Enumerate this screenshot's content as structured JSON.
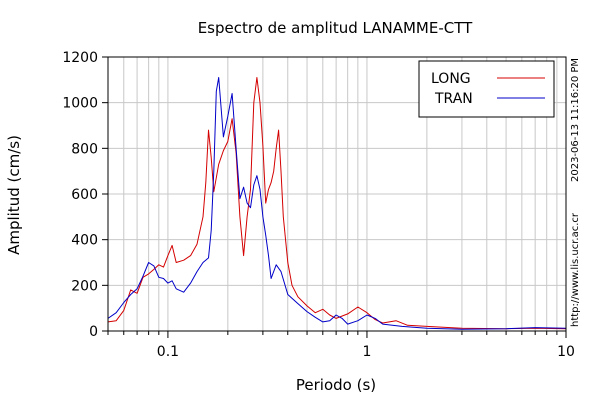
{
  "chart_data": {
    "type": "line",
    "title": "Espectro de amplitud LANAMME-CTT",
    "xlabel": "Periodo (s)",
    "ylabel": "Amplitud (cm/s)",
    "x_scale": "log",
    "xlim": [
      0.05,
      10
    ],
    "ylim": [
      0,
      1200
    ],
    "grid": true,
    "legend_position": "top-right",
    "x_ticks": [
      {
        "value": 0.1,
        "label": "0.1"
      },
      {
        "value": 1,
        "label": "1"
      },
      {
        "value": 10,
        "label": "10"
      }
    ],
    "y_ticks": [
      {
        "value": 0,
        "label": "0"
      },
      {
        "value": 200,
        "label": "200"
      },
      {
        "value": 400,
        "label": "400"
      },
      {
        "value": 600,
        "label": "600"
      },
      {
        "value": 800,
        "label": "800"
      },
      {
        "value": 1000,
        "label": "1000"
      },
      {
        "value": 1200,
        "label": "1200"
      }
    ],
    "series": [
      {
        "name": "LONG",
        "color": "#d40000",
        "points": [
          [
            0.05,
            40
          ],
          [
            0.055,
            45
          ],
          [
            0.06,
            90
          ],
          [
            0.065,
            180
          ],
          [
            0.07,
            165
          ],
          [
            0.075,
            235
          ],
          [
            0.08,
            250
          ],
          [
            0.085,
            270
          ],
          [
            0.09,
            290
          ],
          [
            0.095,
            280
          ],
          [
            0.1,
            330
          ],
          [
            0.105,
            375
          ],
          [
            0.11,
            300
          ],
          [
            0.12,
            310
          ],
          [
            0.13,
            330
          ],
          [
            0.14,
            380
          ],
          [
            0.15,
            500
          ],
          [
            0.155,
            650
          ],
          [
            0.16,
            880
          ],
          [
            0.165,
            760
          ],
          [
            0.17,
            610
          ],
          [
            0.18,
            730
          ],
          [
            0.19,
            790
          ],
          [
            0.2,
            830
          ],
          [
            0.21,
            930
          ],
          [
            0.22,
            780
          ],
          [
            0.23,
            500
          ],
          [
            0.24,
            330
          ],
          [
            0.25,
            500
          ],
          [
            0.26,
            620
          ],
          [
            0.27,
            1000
          ],
          [
            0.28,
            1110
          ],
          [
            0.29,
            1000
          ],
          [
            0.3,
            810
          ],
          [
            0.31,
            560
          ],
          [
            0.32,
            620
          ],
          [
            0.33,
            650
          ],
          [
            0.34,
            700
          ],
          [
            0.35,
            800
          ],
          [
            0.36,
            880
          ],
          [
            0.37,
            700
          ],
          [
            0.38,
            500
          ],
          [
            0.4,
            300
          ],
          [
            0.42,
            200
          ],
          [
            0.45,
            150
          ],
          [
            0.5,
            110
          ],
          [
            0.55,
            80
          ],
          [
            0.6,
            95
          ],
          [
            0.65,
            70
          ],
          [
            0.7,
            55
          ],
          [
            0.8,
            75
          ],
          [
            0.9,
            105
          ],
          [
            1.0,
            80
          ],
          [
            1.1,
            50
          ],
          [
            1.2,
            35
          ],
          [
            1.4,
            45
          ],
          [
            1.6,
            25
          ],
          [
            2.0,
            20
          ],
          [
            3.0,
            12
          ],
          [
            5.0,
            10
          ],
          [
            7.0,
            12
          ],
          [
            10.0,
            10
          ]
        ]
      },
      {
        "name": "TRAN",
        "color": "#0000c8",
        "points": [
          [
            0.05,
            55
          ],
          [
            0.055,
            80
          ],
          [
            0.06,
            125
          ],
          [
            0.065,
            160
          ],
          [
            0.07,
            185
          ],
          [
            0.075,
            240
          ],
          [
            0.08,
            300
          ],
          [
            0.085,
            285
          ],
          [
            0.09,
            235
          ],
          [
            0.095,
            230
          ],
          [
            0.1,
            210
          ],
          [
            0.105,
            220
          ],
          [
            0.11,
            185
          ],
          [
            0.12,
            170
          ],
          [
            0.13,
            210
          ],
          [
            0.14,
            260
          ],
          [
            0.15,
            300
          ],
          [
            0.16,
            320
          ],
          [
            0.165,
            440
          ],
          [
            0.17,
            700
          ],
          [
            0.175,
            1050
          ],
          [
            0.18,
            1110
          ],
          [
            0.19,
            850
          ],
          [
            0.2,
            940
          ],
          [
            0.21,
            1040
          ],
          [
            0.22,
            800
          ],
          [
            0.23,
            580
          ],
          [
            0.24,
            630
          ],
          [
            0.25,
            560
          ],
          [
            0.26,
            540
          ],
          [
            0.27,
            640
          ],
          [
            0.28,
            680
          ],
          [
            0.29,
            620
          ],
          [
            0.3,
            500
          ],
          [
            0.31,
            420
          ],
          [
            0.32,
            330
          ],
          [
            0.33,
            230
          ],
          [
            0.35,
            290
          ],
          [
            0.37,
            260
          ],
          [
            0.4,
            160
          ],
          [
            0.45,
            120
          ],
          [
            0.5,
            85
          ],
          [
            0.55,
            60
          ],
          [
            0.6,
            40
          ],
          [
            0.65,
            45
          ],
          [
            0.7,
            70
          ],
          [
            0.75,
            55
          ],
          [
            0.8,
            30
          ],
          [
            0.9,
            45
          ],
          [
            1.0,
            70
          ],
          [
            1.1,
            55
          ],
          [
            1.2,
            30
          ],
          [
            1.5,
            20
          ],
          [
            2.0,
            12
          ],
          [
            3.0,
            8
          ],
          [
            5.0,
            10
          ],
          [
            7.0,
            15
          ],
          [
            10.0,
            12
          ]
        ]
      }
    ]
  },
  "side_text": {
    "timestamp": "2023-06-13 11:16:20 PM",
    "url": "http://www.lis.ucr.ac.cr"
  }
}
